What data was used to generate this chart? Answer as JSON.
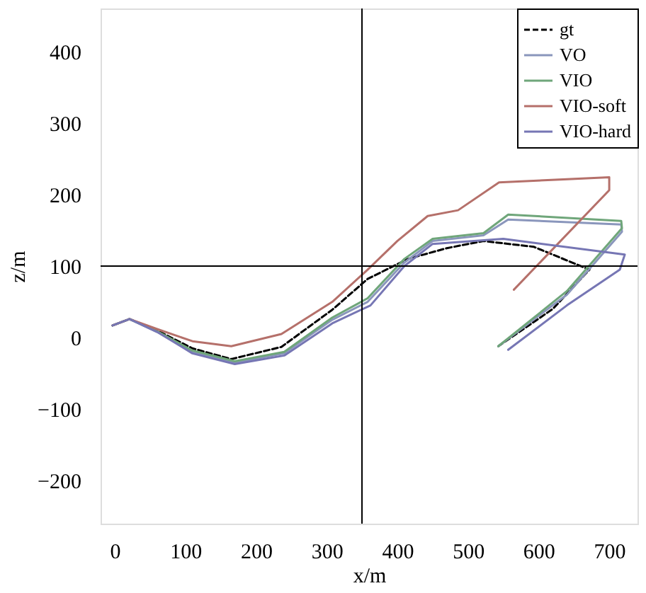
{
  "chart_data": {
    "type": "line",
    "xlabel": "x/m",
    "ylabel": "z/m",
    "xlim": [
      -20,
      740
    ],
    "ylim": [
      -260,
      460
    ],
    "xticks": [
      0,
      100,
      200,
      300,
      400,
      500,
      600,
      700
    ],
    "yticks": [
      -200,
      -100,
      0,
      100,
      200,
      300,
      400
    ],
    "grid": false,
    "legend": "top right",
    "marker": "none",
    "ref_lines": [
      {
        "axis": "x",
        "value": 350,
        "label": null,
        "color": "#000000"
      },
      {
        "axis": "y",
        "value": 100,
        "label": null,
        "color": "#000000"
      }
    ],
    "series": [
      {
        "name": "gt",
        "color": "#000000",
        "line_style": "dashed",
        "x": [
          -3,
          21,
          60,
          110,
          165,
          236,
          308,
          358,
          415,
          470,
          522,
          593,
          672,
          620,
          543
        ],
        "values": [
          17,
          26,
          10,
          -15,
          -30,
          -13,
          39,
          82,
          110,
          125,
          135,
          127,
          95,
          40,
          -12
        ]
      },
      {
        "name": "VO",
        "color": "#8a96bc",
        "line_style": "solid",
        "x": [
          -3,
          21,
          60,
          110,
          170,
          240,
          308,
          358,
          410,
          450,
          522,
          557,
          717,
          718,
          640,
          543
        ],
        "values": [
          17,
          26,
          8,
          -20,
          -35,
          -22,
          25,
          50,
          105,
          135,
          143,
          165,
          158,
          148,
          60,
          -12
        ]
      },
      {
        "name": "VIO",
        "color": "#6fa67a",
        "line_style": "solid",
        "x": [
          -3,
          21,
          60,
          110,
          170,
          240,
          308,
          358,
          410,
          450,
          522,
          557,
          717,
          718,
          640,
          543
        ],
        "values": [
          17,
          26,
          9,
          -18,
          -33,
          -20,
          28,
          55,
          110,
          138,
          146,
          172,
          163,
          153,
          65,
          -12
        ]
      },
      {
        "name": "VIO-soft",
        "color": "#b5706a",
        "line_style": "solid",
        "x": [
          -3,
          21,
          60,
          110,
          165,
          236,
          308,
          358,
          400,
          443,
          486,
          544,
          700,
          700,
          565
        ],
        "values": [
          17,
          26,
          12,
          -5,
          -12,
          5,
          50,
          95,
          135,
          170,
          178,
          217,
          224,
          206,
          67
        ]
      },
      {
        "name": "VIO-hard",
        "color": "#7676b4",
        "line_style": "solid",
        "x": [
          -3,
          21,
          60,
          110,
          170,
          240,
          308,
          362,
          410,
          450,
          550,
          722,
          715,
          640,
          557
        ],
        "values": [
          17,
          26,
          8,
          -22,
          -37,
          -25,
          20,
          45,
          100,
          131,
          138,
          116,
          95,
          45,
          -17
        ]
      }
    ]
  }
}
